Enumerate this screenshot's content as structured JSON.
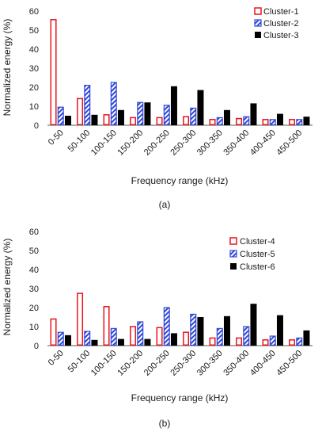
{
  "colors": {
    "cluster_red": "#e8141b",
    "cluster_blue": "#2f47d9",
    "cluster_black": "#000000",
    "axis": "#595959",
    "text": "#1a1a1a"
  },
  "chart_data": [
    {
      "type": "bar",
      "panel_label": "(a)",
      "title": "",
      "xlabel": "Frequency range (kHz)",
      "ylabel": "Normalized energy (%)",
      "ylim": [
        0,
        60
      ],
      "yticks": [
        0,
        10,
        20,
        30,
        40,
        50,
        60
      ],
      "grid": false,
      "legend_position": "top-right",
      "categories": [
        "0-50",
        "50-100",
        "100-150",
        "150-200",
        "200-250",
        "250-300",
        "300-350",
        "350-400",
        "400-450",
        "450-500"
      ],
      "series": [
        {
          "name": "Cluster-1",
          "style": "outline",
          "color": "#e8141b",
          "values": [
            55.5,
            14,
            5.5,
            4,
            4,
            4.5,
            3,
            3.5,
            3,
            3
          ]
        },
        {
          "name": "Cluster-2",
          "style": "hatched",
          "color": "#2f47d9",
          "values": [
            9.5,
            21,
            22.5,
            12,
            10.5,
            9,
            4,
            4.5,
            3,
            3
          ]
        },
        {
          "name": "Cluster-3",
          "style": "solid",
          "color": "#000000",
          "values": [
            5,
            5.5,
            8,
            12,
            20.5,
            18.5,
            8,
            11.5,
            6,
            4.5
          ]
        }
      ]
    },
    {
      "type": "bar",
      "panel_label": "(b)",
      "title": "",
      "xlabel": "Frequency range (kHz)",
      "ylabel": "Normalized energy (%)",
      "ylim": [
        0,
        60
      ],
      "yticks": [
        0,
        10,
        20,
        30,
        40,
        50,
        60
      ],
      "grid": false,
      "legend_position": "top-right",
      "categories": [
        "0-50",
        "50-100",
        "100-150",
        "150-200",
        "200-250",
        "250-300",
        "300-350",
        "350-400",
        "400-450",
        "450-500"
      ],
      "series": [
        {
          "name": "Cluster-4",
          "style": "outline",
          "color": "#e8141b",
          "values": [
            14,
            27.5,
            20.5,
            10,
            9.5,
            7,
            4,
            4,
            3,
            3
          ]
        },
        {
          "name": "Cluster-5",
          "style": "hatched",
          "color": "#2f47d9",
          "values": [
            7,
            7.5,
            9,
            12.5,
            20,
            16.5,
            9,
            10,
            5,
            4
          ]
        },
        {
          "name": "Cluster-6",
          "style": "solid",
          "color": "#000000",
          "values": [
            5.5,
            3,
            3.5,
            3.5,
            6.5,
            15,
            15.5,
            22,
            16,
            8
          ]
        }
      ]
    }
  ]
}
